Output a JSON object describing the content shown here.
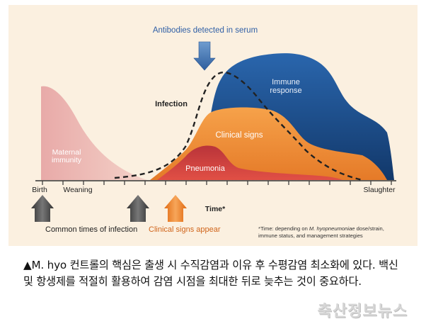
{
  "diagram": {
    "labels": {
      "antibodies": "Antibodies detected in serum",
      "infection": "Infection",
      "immune_response_line1": "Immune",
      "immune_response_line2": "response",
      "clinical_signs": "Clinical signs",
      "pneumonia": "Pneumonia",
      "maternal_line1": "Maternal",
      "maternal_line2": "immunity"
    },
    "axis": {
      "birth": "Birth",
      "weaning": "Weaning",
      "slaughter": "Slaughter",
      "time": "Time*"
    },
    "legend": {
      "common_infection": "Common times of infection",
      "clinical_appear": "Clinical signs appear"
    },
    "footnote": {
      "line1_prefix": "*Time: depending on ",
      "line1_species": "M. hyopneumoniae",
      "line1_suffix": " dose/strain,",
      "line2": "immune status, and management strategies"
    },
    "colors": {
      "background": "#fbf0e0",
      "immune": "#1b4e8a",
      "clinical": "#ee8a3a",
      "pneumonia": "#c0303a",
      "maternal": "#e8a6a4",
      "arrow_dark": "#4a4a4a",
      "arrow_orange": "#e87a1e",
      "arrow_blue": "#3a6aa8",
      "label_blue": "#2f5fa6",
      "label_orange": "#d0641a"
    }
  },
  "caption": {
    "text": "▲M. hyo 컨트롤의 핵심은 출생 시 수직감염과 이유 후 수평감염 최소화에 있다. 백신 및 항생제를 적절히 활용하여 감염 시점을 최대한 뒤로 늦추는 것이 중요하다."
  },
  "watermark": "축산정보뉴스"
}
